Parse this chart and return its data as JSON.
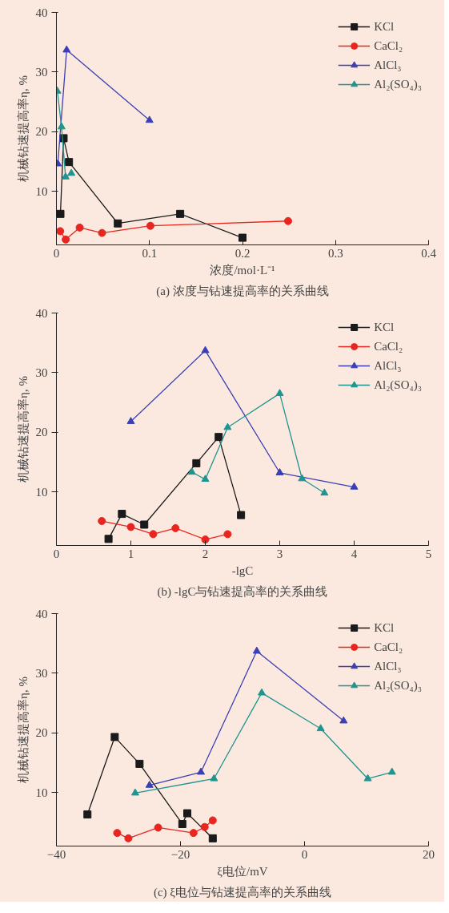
{
  "chart_data": [
    {
      "type": "line",
      "title": "(a) 浓度与钻速提高率的关系曲线",
      "xlabel": "浓度/mol·L⁻¹",
      "ylabel": "机械钻速提高率η, %",
      "xlim": [
        0,
        0.4
      ],
      "xticks": [
        0,
        0.1,
        0.2,
        0.3,
        0.4
      ],
      "ylim": [
        1,
        40
      ],
      "yticks": [
        10,
        20,
        30,
        40
      ],
      "grid": false,
      "legend": "top right",
      "series": [
        {
          "name": "KCl",
          "color": "#1a1a1a",
          "marker": "square",
          "x": [
            0.0043,
            0.0077,
            0.0135,
            0.066,
            0.133,
            0.2
          ],
          "values": [
            6.2,
            18.9,
            14.9,
            4.6,
            6.2,
            2.2
          ]
        },
        {
          "name": "CaCl₂",
          "color": "#e8251f",
          "marker": "circle",
          "x": [
            0.004,
            0.01,
            0.025,
            0.049,
            0.101,
            0.249
          ],
          "values": [
            3.3,
            1.9,
            3.9,
            3.0,
            4.2,
            5.0
          ]
        },
        {
          "name": "AlCl₃",
          "color": "#3b3fb5",
          "marker": "triangle",
          "x": [
            0.0015,
            0.011,
            0.1
          ],
          "values": [
            14.6,
            33.7,
            21.9
          ]
        },
        {
          "name": "Al₂(SO₄)₃",
          "color": "#1e9590",
          "marker": "triangle",
          "x": [
            0.001,
            0.0055,
            0.0098,
            0.016
          ],
          "values": [
            26.8,
            20.8,
            12.4,
            13.0
          ]
        }
      ]
    },
    {
      "type": "line",
      "title": "(b) -lgC与钻速提高率的关系曲线",
      "xlabel": "-lgC",
      "ylabel": "机械钻速提高率η, %",
      "xlim": [
        0,
        5
      ],
      "xticks": [
        0,
        1,
        2,
        3,
        4,
        5
      ],
      "ylim": [
        1,
        40
      ],
      "yticks": [
        10,
        20,
        30,
        40
      ],
      "grid": false,
      "legend": "top right",
      "series": [
        {
          "name": "KCl",
          "color": "#1a1a1a",
          "marker": "square",
          "x": [
            0.7,
            0.88,
            1.18,
            1.88,
            2.18,
            2.48
          ],
          "values": [
            2.1,
            6.3,
            4.5,
            14.8,
            19.2,
            6.1
          ]
        },
        {
          "name": "CaCl₂",
          "color": "#e8251f",
          "marker": "circle",
          "x": [
            0.61,
            1.0,
            1.3,
            1.6,
            2.0,
            2.3
          ],
          "values": [
            5.1,
            4.1,
            2.9,
            3.9,
            2.0,
            2.9
          ]
        },
        {
          "name": "AlCl₃",
          "color": "#3b3fb5",
          "marker": "triangle",
          "x": [
            1,
            2,
            3,
            4
          ],
          "values": [
            21.8,
            33.7,
            13.2,
            10.8
          ]
        },
        {
          "name": "Al₂(SO₄)₃",
          "color": "#1e9590",
          "marker": "triangle",
          "x": [
            1.82,
            2.0,
            2.3,
            3.0,
            3.3,
            3.6
          ],
          "values": [
            13.3,
            12.1,
            20.8,
            26.5,
            12.2,
            9.8
          ]
        }
      ]
    },
    {
      "type": "line",
      "title": "(c) ξ电位与钻速提高率的关系曲线",
      "xlabel": "ξ电位/mV",
      "ylabel": "机械钻速提高率η, %",
      "xlim": [
        -40,
        20
      ],
      "xticks": [
        -40,
        -20,
        0,
        20
      ],
      "ylim": [
        1,
        40
      ],
      "yticks": [
        10,
        20,
        30,
        40
      ],
      "grid": false,
      "legend": "top right",
      "series": [
        {
          "name": "KCl",
          "color": "#1a1a1a",
          "marker": "square",
          "x": [
            -35.0,
            -30.6,
            -26.6,
            -19.7,
            -18.9,
            -14.8
          ],
          "values": [
            6.3,
            19.3,
            14.8,
            4.7,
            6.5,
            2.3
          ]
        },
        {
          "name": "CaCl₂",
          "color": "#e8251f",
          "marker": "circle",
          "x": [
            -30.2,
            -28.4,
            -23.6,
            -17.9,
            -16.1,
            -14.8
          ],
          "values": [
            3.2,
            2.3,
            4.1,
            3.2,
            4.2,
            5.3
          ]
        },
        {
          "name": "AlCl₃",
          "color": "#3b3fb5",
          "marker": "triangle",
          "x": [
            -25.0,
            -16.7,
            -7.7,
            6.3
          ],
          "values": [
            11.2,
            13.4,
            33.7,
            22.0
          ]
        },
        {
          "name": "Al₂(SO₄)₃",
          "color": "#1e9590",
          "marker": "triangle",
          "x": [
            -27.3,
            -14.6,
            -6.9,
            2.6,
            10.2,
            14.1
          ],
          "values": [
            9.9,
            12.3,
            26.7,
            20.7,
            12.3,
            13.4
          ]
        }
      ]
    }
  ]
}
